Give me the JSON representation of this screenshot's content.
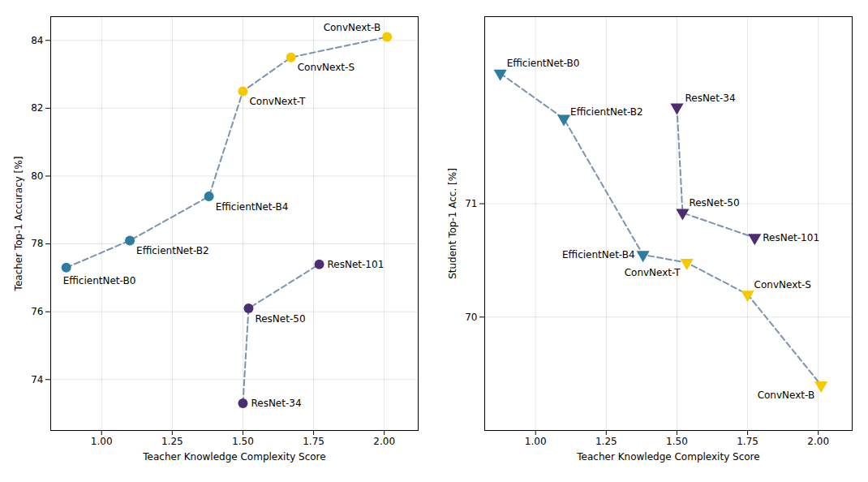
{
  "chart_data": [
    {
      "type": "scatter",
      "xlabel": "Teacher Knowledge Complexity Score",
      "ylabel": "Teacher Top-1 Accuracy [%]",
      "xlim": [
        0.82,
        2.12
      ],
      "ylim": [
        72.5,
        84.7
      ],
      "xticks": [
        {
          "value": 1.0,
          "label": "1.00"
        },
        {
          "value": 1.25,
          "label": "1.25"
        },
        {
          "value": 1.5,
          "label": "1.50"
        },
        {
          "value": 1.75,
          "label": "1.75"
        },
        {
          "value": 2.0,
          "label": "2.00"
        }
      ],
      "yticks": [
        74,
        76,
        78,
        80,
        82,
        84
      ],
      "grid": true,
      "marker": "circle",
      "lines": [
        {
          "color": "#7a93b0",
          "line_style": "dashed",
          "x": [
            0.875,
            1.1,
            1.38,
            1.5,
            1.67,
            2.01
          ],
          "y": [
            77.3,
            78.1,
            79.4,
            82.5,
            83.5,
            84.1
          ]
        },
        {
          "color": "#7a93b0",
          "line_style": "dashed",
          "x": [
            1.5,
            1.52,
            1.77
          ],
          "y": [
            73.3,
            76.1,
            77.4
          ]
        }
      ],
      "points": [
        {
          "name": "EfficientNet-B0",
          "x": 0.875,
          "y": 77.3,
          "color": "#2e7d9e"
        },
        {
          "name": "EfficientNet-B2",
          "x": 1.1,
          "y": 78.1,
          "color": "#2e7d9e"
        },
        {
          "name": "EfficientNet-B4",
          "x": 1.38,
          "y": 79.4,
          "color": "#2e7d9e"
        },
        {
          "name": "ResNet-34",
          "x": 1.5,
          "y": 73.3,
          "color": "#4b2d72"
        },
        {
          "name": "ResNet-50",
          "x": 1.52,
          "y": 76.1,
          "color": "#4b2d72"
        },
        {
          "name": "ResNet-101",
          "x": 1.77,
          "y": 77.4,
          "color": "#4b2d72"
        },
        {
          "name": "ConvNext-T",
          "x": 1.5,
          "y": 82.5,
          "color": "#f5c800"
        },
        {
          "name": "ConvNext-S",
          "x": 1.67,
          "y": 83.5,
          "color": "#f5c800"
        },
        {
          "name": "ConvNext-B",
          "x": 2.01,
          "y": 84.1,
          "color": "#f5c800"
        }
      ]
    },
    {
      "type": "scatter",
      "xlabel": "Teacher Knowledge Complexity Score",
      "ylabel": "Student Top-1 Acc. [%]",
      "xlim": [
        0.82,
        2.12
      ],
      "ylim": [
        69.0,
        72.65
      ],
      "xticks": [
        {
          "value": 1.0,
          "label": "1.00"
        },
        {
          "value": 1.25,
          "label": "1.25"
        },
        {
          "value": 1.5,
          "label": "1.50"
        },
        {
          "value": 1.75,
          "label": "1.75"
        },
        {
          "value": 2.0,
          "label": "2.00"
        }
      ],
      "yticks": [
        70,
        71
      ],
      "grid": true,
      "marker": "triangle-down",
      "lines": [
        {
          "color": "#7a93b0",
          "line_style": "dashed",
          "x": [
            0.875,
            1.1,
            1.38,
            1.535,
            1.75,
            2.01
          ],
          "y": [
            72.15,
            71.75,
            70.55,
            70.48,
            70.2,
            69.4
          ]
        },
        {
          "color": "#7a93b0",
          "line_style": "dashed",
          "x": [
            1.5,
            1.52,
            1.775
          ],
          "y": [
            71.85,
            70.92,
            70.7
          ]
        }
      ],
      "points": [
        {
          "name": "EfficientNet-B0",
          "x": 0.875,
          "y": 72.15,
          "color": "#2e7d9e"
        },
        {
          "name": "EfficientNet-B2",
          "x": 1.1,
          "y": 71.75,
          "color": "#2e7d9e"
        },
        {
          "name": "EfficientNet-B4",
          "x": 1.38,
          "y": 70.55,
          "color": "#2e7d9e"
        },
        {
          "name": "ResNet-34",
          "x": 1.5,
          "y": 71.85,
          "color": "#4b2d72"
        },
        {
          "name": "ResNet-50",
          "x": 1.52,
          "y": 70.92,
          "color": "#4b2d72"
        },
        {
          "name": "ResNet-101",
          "x": 1.775,
          "y": 70.7,
          "color": "#4b2d72"
        },
        {
          "name": "ConvNext-T",
          "x": 1.535,
          "y": 70.48,
          "color": "#f5c800"
        },
        {
          "name": "ConvNext-S",
          "x": 1.75,
          "y": 70.2,
          "color": "#f5c800"
        },
        {
          "name": "ConvNext-B",
          "x": 2.01,
          "y": 69.4,
          "color": "#f5c800"
        }
      ]
    }
  ]
}
